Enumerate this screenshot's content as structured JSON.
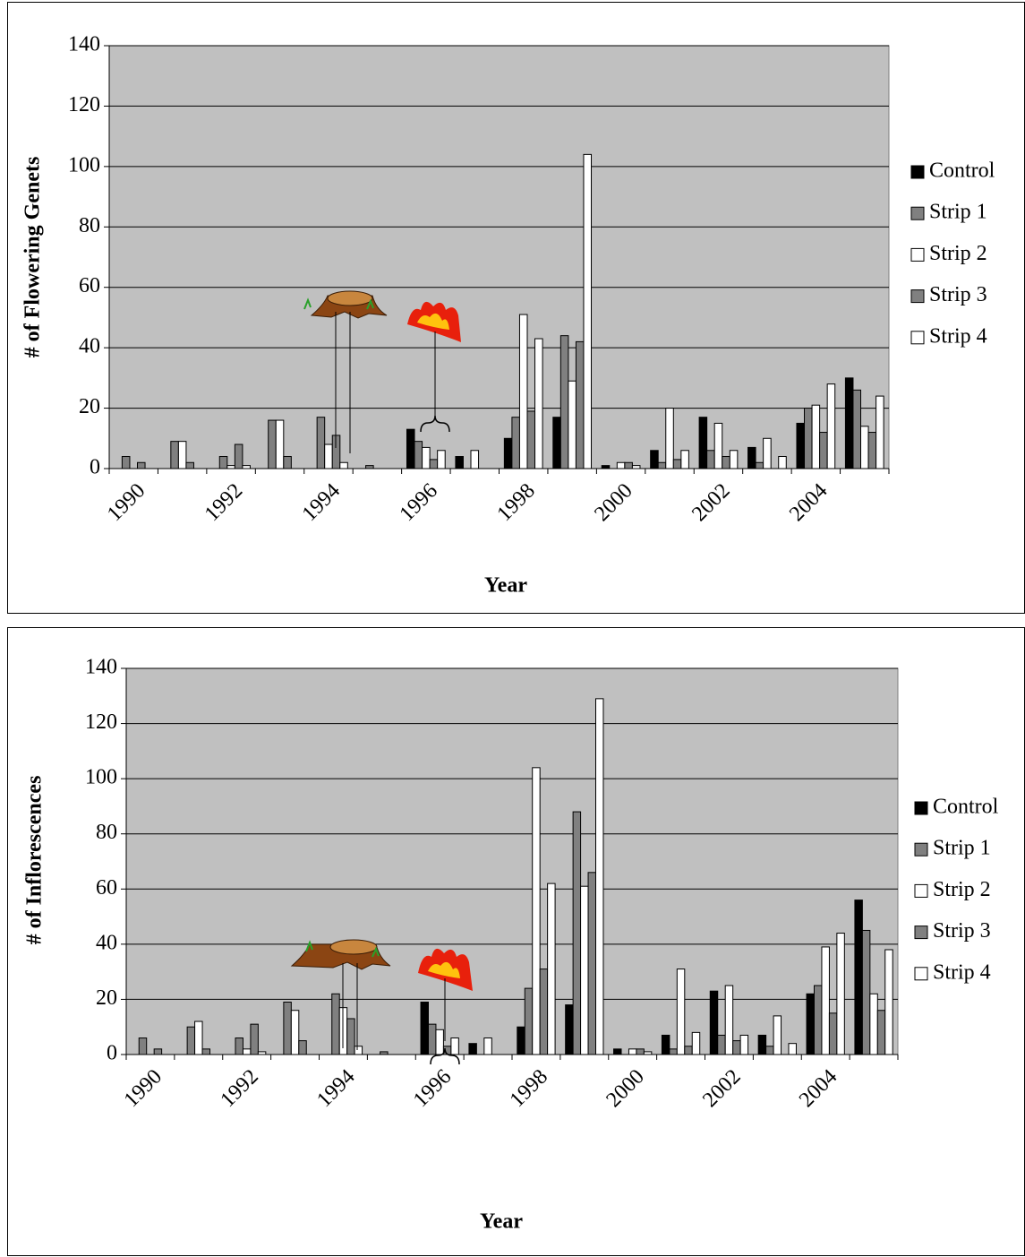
{
  "chart_data": [
    {
      "type": "bar",
      "y_label": "# of Flowering Genets",
      "x_label": "Year",
      "categories": [
        "1990",
        null,
        "1992",
        null,
        "1994",
        null,
        "1996",
        null,
        "1998",
        null,
        "2000",
        null,
        "2002",
        null,
        "2004",
        null
      ],
      "series": [
        {
          "name": "Control",
          "color": "#000000",
          "values": [
            0,
            0,
            0,
            0,
            0,
            0,
            13,
            4,
            10,
            17,
            1,
            6,
            17,
            7,
            15,
            30
          ]
        },
        {
          "name": "Strip 1",
          "color": "#808080",
          "values": [
            4,
            9,
            4,
            16,
            17,
            1,
            9,
            0,
            17,
            44,
            0,
            2,
            6,
            2,
            20,
            26
          ]
        },
        {
          "name": "Strip 2",
          "color": "#ffffff",
          "values": [
            0,
            9,
            1,
            16,
            8,
            0,
            7,
            6,
            51,
            29,
            2,
            20,
            15,
            10,
            21,
            14
          ]
        },
        {
          "name": "Strip 3",
          "color": "#808080",
          "values": [
            2,
            2,
            8,
            4,
            11,
            0,
            3,
            0,
            19,
            42,
            2,
            3,
            4,
            0,
            12,
            12
          ]
        },
        {
          "name": "Strip 4",
          "color": "#ffffff",
          "values": [
            0,
            0,
            1,
            0,
            2,
            0,
            6,
            0,
            43,
            104,
            1,
            6,
            6,
            4,
            28,
            24
          ]
        }
      ],
      "ylim": [
        0,
        140
      ],
      "yticks": [
        0,
        20,
        40,
        60,
        80,
        100,
        120,
        140
      ],
      "grid": true,
      "legend": "right",
      "plot_background": "#c0c0c0"
    },
    {
      "type": "bar",
      "y_label": "# of Inflorescences",
      "x_label": "Year",
      "categories": [
        "1990",
        null,
        "1992",
        null,
        "1994",
        null,
        "1996",
        null,
        "1998",
        null,
        "2000",
        null,
        "2002",
        null,
        "2004",
        null
      ],
      "series": [
        {
          "name": "Control",
          "color": "#000000",
          "values": [
            0,
            0,
            0,
            0,
            0,
            0,
            19,
            4,
            10,
            18,
            2,
            7,
            23,
            7,
            22,
            56
          ]
        },
        {
          "name": "Strip 1",
          "color": "#808080",
          "values": [
            6,
            10,
            6,
            19,
            22,
            1,
            11,
            0,
            24,
            88,
            0,
            2,
            7,
            3,
            25,
            45
          ]
        },
        {
          "name": "Strip 2",
          "color": "#ffffff",
          "values": [
            0,
            12,
            2,
            16,
            17,
            0,
            9,
            6,
            104,
            61,
            2,
            31,
            25,
            14,
            39,
            22
          ]
        },
        {
          "name": "Strip 3",
          "color": "#808080",
          "values": [
            2,
            2,
            11,
            5,
            13,
            0,
            3,
            0,
            31,
            66,
            2,
            3,
            5,
            0,
            15,
            16
          ]
        },
        {
          "name": "Strip 4",
          "color": "#ffffff",
          "values": [
            0,
            0,
            1,
            0,
            3,
            0,
            6,
            0,
            62,
            129,
            1,
            8,
            7,
            4,
            44,
            38
          ]
        }
      ],
      "ylim": [
        0,
        140
      ],
      "yticks": [
        0,
        20,
        40,
        60,
        80,
        100,
        120,
        140
      ],
      "grid": true,
      "legend": "right",
      "plot_background": "#c0c0c0"
    }
  ]
}
